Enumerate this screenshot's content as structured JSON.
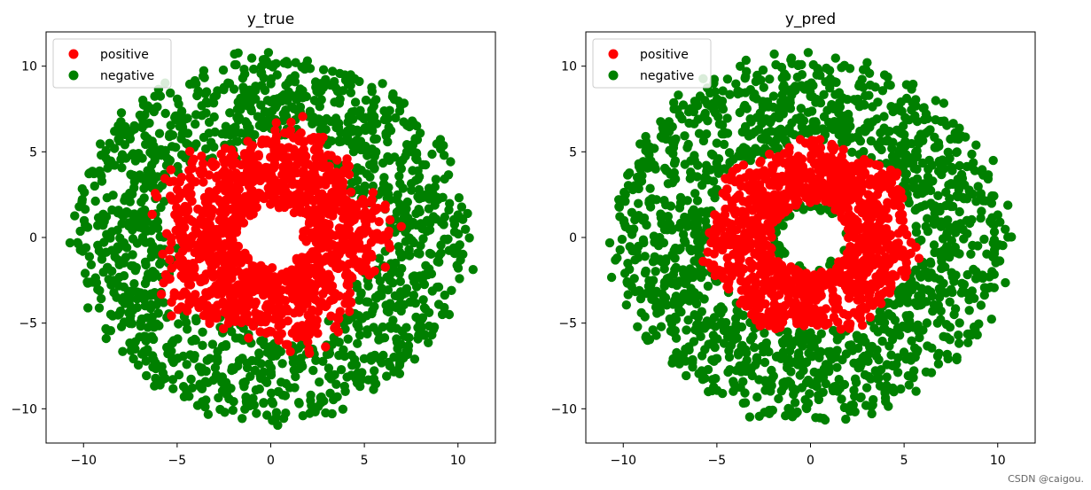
{
  "chart_data": [
    {
      "type": "scatter",
      "title": "y_true",
      "xlabel": "",
      "ylabel": "",
      "xlim": [
        -12,
        12
      ],
      "ylim": [
        -12,
        12
      ],
      "xticks": [
        -10,
        -5,
        0,
        5,
        10
      ],
      "yticks": [
        10,
        5,
        0,
        -5,
        -10
      ],
      "xtick_labels": [
        "−10",
        "−5",
        "0",
        "5",
        "10"
      ],
      "ytick_labels": [
        "10",
        "5",
        "0",
        "−5",
        "−10"
      ],
      "grid": false,
      "legend": {
        "placement": "top-left",
        "entries": [
          {
            "label": "positive",
            "color": "#ff0000"
          },
          {
            "label": "negative",
            "color": "#008000"
          }
        ]
      },
      "series": [
        {
          "name": "positive",
          "color": "#ff0000",
          "shape": "noisy-ring",
          "center": [
            0,
            0
          ],
          "r_min": 2.0,
          "r_max": 6.4,
          "note": "points with radius below ~6"
        },
        {
          "name": "negative",
          "color": "#008000",
          "shape": "noisy-ring",
          "center": [
            0,
            0
          ],
          "r_min": 5.5,
          "r_max": 11.0,
          "note": "outer ring points"
        }
      ]
    },
    {
      "type": "scatter",
      "title": "y_pred",
      "xlabel": "",
      "ylabel": "",
      "xlim": [
        -12,
        12
      ],
      "ylim": [
        -12,
        12
      ],
      "xticks": [
        -10,
        -5,
        0,
        5,
        10
      ],
      "yticks": [
        10,
        5,
        0,
        -5,
        -10
      ],
      "xtick_labels": [
        "−10",
        "−5",
        "0",
        "5",
        "10"
      ],
      "ytick_labels": [
        "10",
        "5",
        "0",
        "−5",
        "−10"
      ],
      "grid": false,
      "legend": {
        "placement": "top-left",
        "entries": [
          {
            "label": "positive",
            "color": "#ff0000"
          },
          {
            "label": "negative",
            "color": "#008000"
          }
        ]
      },
      "series": [
        {
          "name": "positive",
          "color": "#ff0000",
          "shape": "heptagon-ring",
          "center": [
            0,
            0
          ],
          "r_min": 2.0,
          "r_max": 5.8
        },
        {
          "name": "negative",
          "color": "#008000",
          "shape": "noisy-ring",
          "center": [
            0,
            0
          ],
          "r_min": 5.5,
          "r_max": 11.0
        }
      ]
    }
  ],
  "watermark": "CSDN @caigou."
}
